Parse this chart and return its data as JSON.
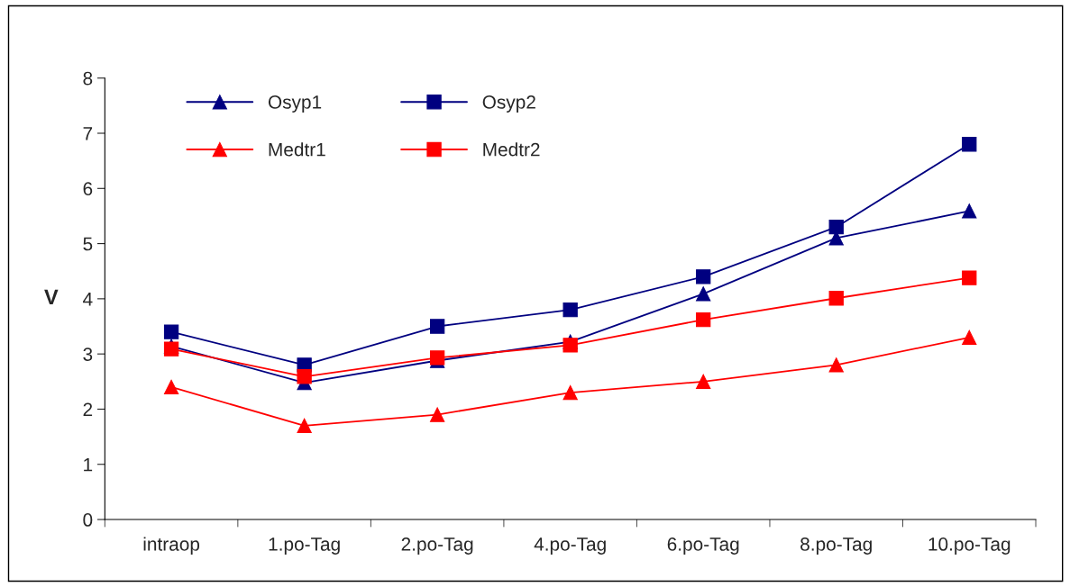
{
  "chart_data": {
    "type": "line",
    "ylabel": "V",
    "categories": [
      "intraop",
      "1.po-Tag",
      "2.po-Tag",
      "4.po-Tag",
      "6.po-Tag",
      "8.po-Tag",
      "10.po-Tag"
    ],
    "series": [
      {
        "name": "Osyp1",
        "color": "#000080",
        "marker": "triangle",
        "values": [
          3.14,
          2.48,
          2.88,
          3.22,
          4.09,
          5.1,
          5.59
        ]
      },
      {
        "name": "Osyp2",
        "color": "#000080",
        "marker": "square",
        "values": [
          3.4,
          2.8,
          3.5,
          3.8,
          4.4,
          5.3,
          6.8
        ]
      },
      {
        "name": "Medtr1",
        "color": "#ff0000",
        "marker": "triangle",
        "values": [
          2.4,
          1.7,
          1.9,
          2.3,
          2.5,
          2.8,
          3.3
        ]
      },
      {
        "name": "Medtr2",
        "color": "#ff0000",
        "marker": "square",
        "values": [
          3.09,
          2.59,
          2.93,
          3.16,
          3.62,
          4.01,
          4.38
        ]
      }
    ],
    "ylim": [
      0,
      8
    ],
    "yticks": [
      0,
      1,
      2,
      3,
      4,
      5,
      6,
      7,
      8
    ],
    "grid": false,
    "legend": "top left",
    "line_style": "solid"
  }
}
